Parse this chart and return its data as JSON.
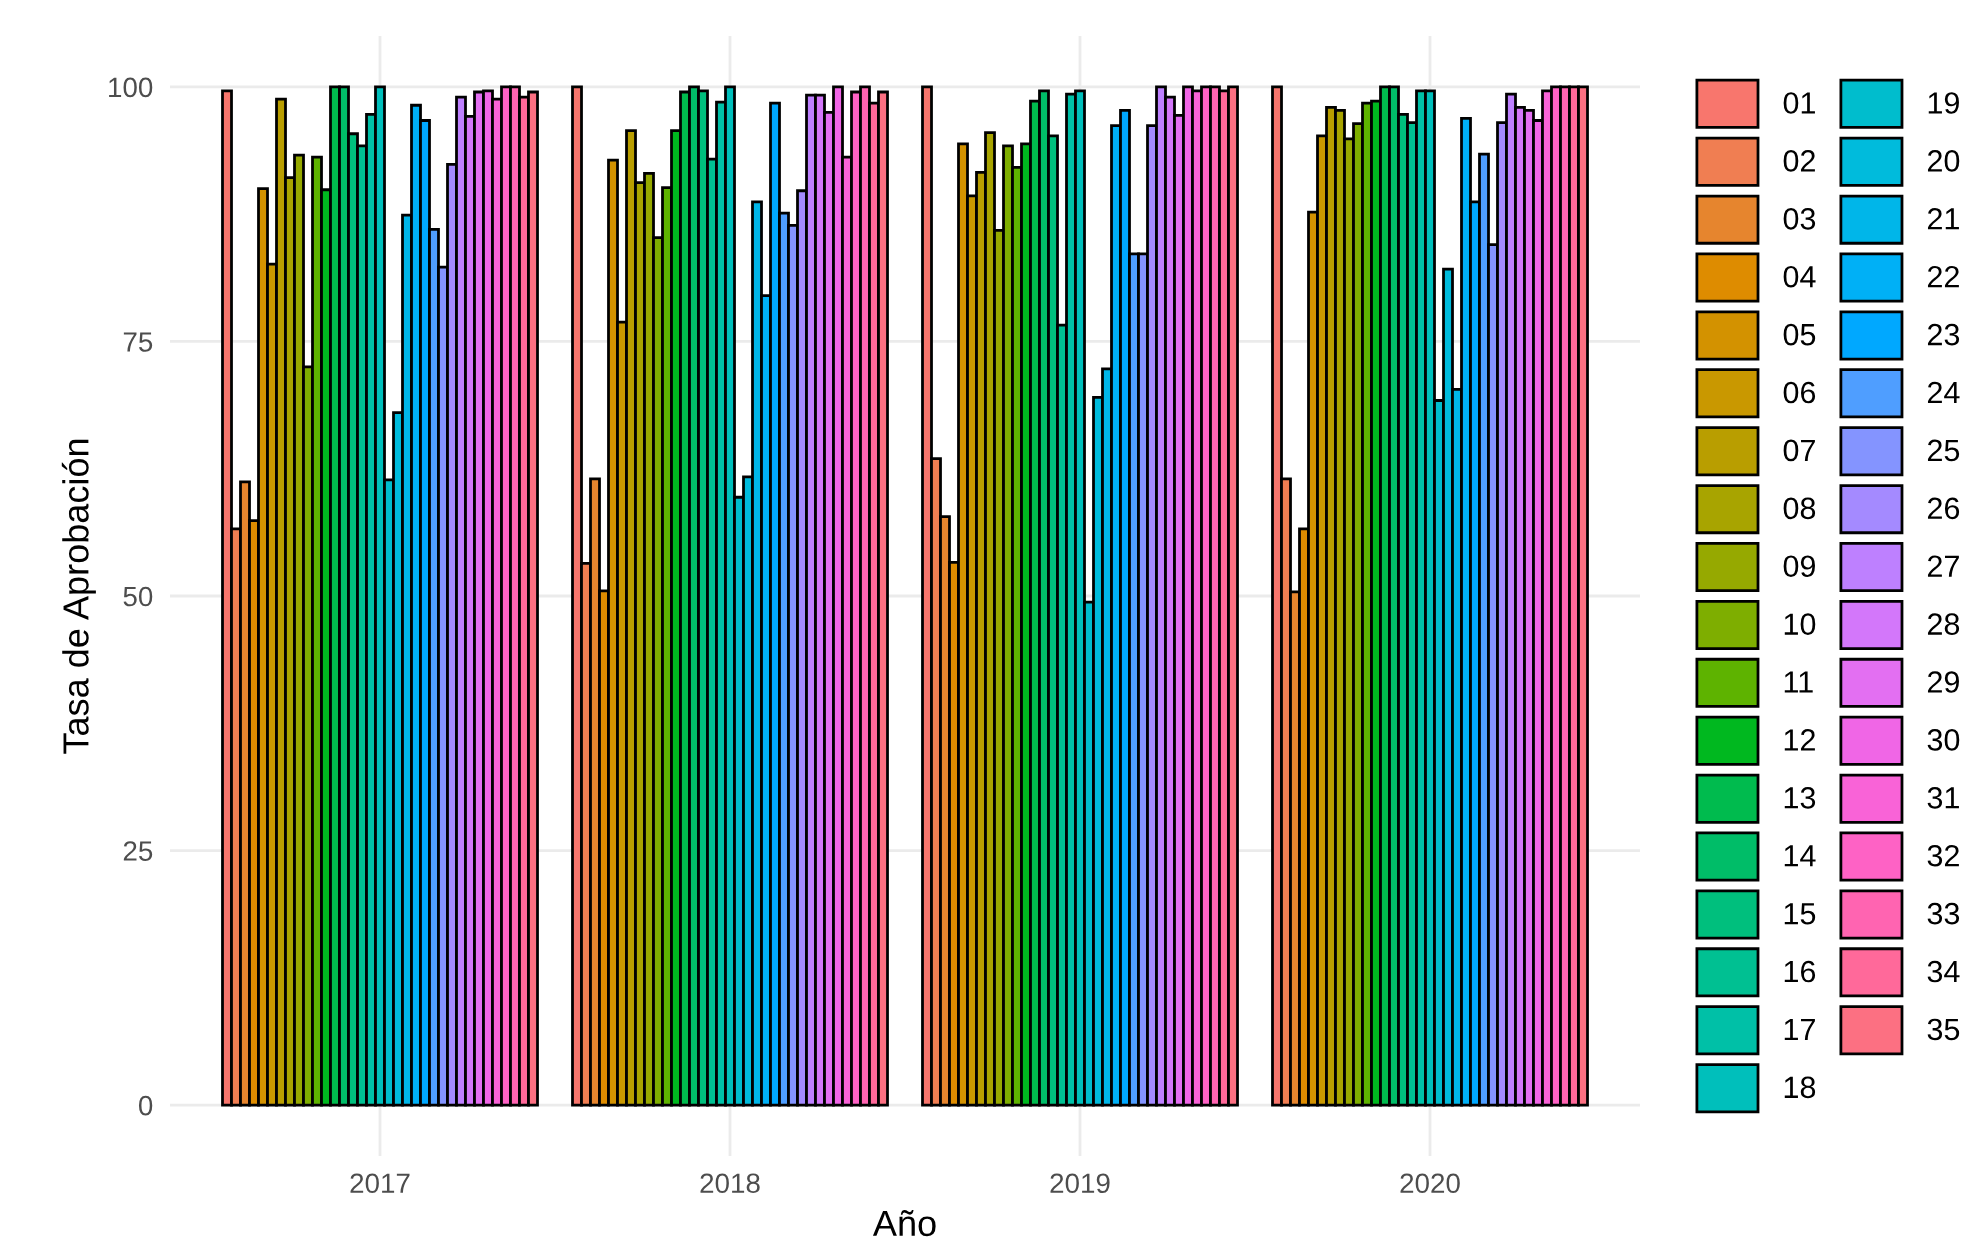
{
  "chart_data": {
    "type": "bar",
    "xlabel": "Año",
    "ylabel": "Tasa de Aprobación",
    "categories": [
      "2017",
      "2018",
      "2019",
      "2020"
    ],
    "ylim": [
      -5,
      105
    ],
    "yticks": [
      0,
      25,
      50,
      75,
      100
    ],
    "grid": true,
    "legend": "right",
    "series": [
      {
        "name": "01",
        "color": "#F8766D",
        "values": [
          99.6,
          100,
          100,
          100
        ]
      },
      {
        "name": "02",
        "color": "#F07E52",
        "values": [
          56.6,
          53.2,
          63.5,
          61.5
        ]
      },
      {
        "name": "03",
        "color": "#E6852E",
        "values": [
          61.2,
          61.5,
          57.8,
          50.4
        ]
      },
      {
        "name": "04",
        "color": "#DE8C00",
        "values": [
          57.4,
          50.5,
          53.3,
          56.6
        ]
      },
      {
        "name": "05",
        "color": "#D39200",
        "values": [
          90.0,
          92.8,
          94.4,
          87.7
        ]
      },
      {
        "name": "06",
        "color": "#C99800",
        "values": [
          82.6,
          76.9,
          89.3,
          95.2
        ]
      },
      {
        "name": "07",
        "color": "#B99E00",
        "values": [
          98.8,
          95.7,
          91.6,
          98.0
        ]
      },
      {
        "name": "08",
        "color": "#A8A400",
        "values": [
          91.1,
          90.6,
          95.5,
          97.7
        ]
      },
      {
        "name": "09",
        "color": "#96A900",
        "values": [
          93.3,
          91.5,
          85.9,
          94.9
        ]
      },
      {
        "name": "10",
        "color": "#7EAE00",
        "values": [
          72.5,
          85.2,
          94.2,
          96.4
        ]
      },
      {
        "name": "11",
        "color": "#5EB300",
        "values": [
          93.1,
          90.1,
          92.1,
          98.4
        ]
      },
      {
        "name": "12",
        "color": "#00B81F",
        "values": [
          89.9,
          95.7,
          94.4,
          98.6
        ]
      },
      {
        "name": "13",
        "color": "#00BB4E",
        "values": [
          100,
          99.5,
          98.6,
          100
        ]
      },
      {
        "name": "14",
        "color": "#00BD68",
        "values": [
          100,
          100,
          99.6,
          100
        ]
      },
      {
        "name": "15",
        "color": "#00BF7D",
        "values": [
          95.4,
          99.6,
          95.2,
          97.3
        ]
      },
      {
        "name": "16",
        "color": "#00C092",
        "values": [
          94.2,
          92.9,
          76.6,
          96.5
        ]
      },
      {
        "name": "17",
        "color": "#00C0A7",
        "values": [
          97.3,
          98.5,
          99.3,
          99.6
        ]
      },
      {
        "name": "18",
        "color": "#00BFBB",
        "values": [
          100,
          100,
          99.6,
          99.6
        ]
      },
      {
        "name": "19",
        "color": "#00BDCD",
        "values": [
          61.4,
          59.7,
          49.4,
          69.2
        ]
      },
      {
        "name": "20",
        "color": "#00BBDC",
        "values": [
          68.0,
          61.7,
          69.5,
          82.1
        ]
      },
      {
        "name": "21",
        "color": "#00B6E9",
        "values": [
          87.4,
          88.7,
          72.3,
          70.3
        ]
      },
      {
        "name": "22",
        "color": "#00B0F6",
        "values": [
          98.2,
          79.5,
          96.2,
          96.9
        ]
      },
      {
        "name": "23",
        "color": "#00A8FF",
        "values": [
          96.7,
          98.4,
          97.7,
          88.7
        ]
      },
      {
        "name": "24",
        "color": "#4F9EFF",
        "values": [
          86.0,
          87.6,
          83.6,
          93.4
        ]
      },
      {
        "name": "25",
        "color": "#8494FF",
        "values": [
          82.3,
          86.4,
          83.6,
          84.5
        ]
      },
      {
        "name": "26",
        "color": "#A48AFF",
        "values": [
          92.4,
          89.8,
          96.2,
          96.5
        ]
      },
      {
        "name": "27",
        "color": "#BE80FF",
        "values": [
          99.0,
          99.2,
          100,
          99.3
        ]
      },
      {
        "name": "28",
        "color": "#D377FA",
        "values": [
          97.1,
          99.2,
          99.0,
          98.0
        ]
      },
      {
        "name": "29",
        "color": "#E36FF2",
        "values": [
          99.5,
          97.5,
          97.2,
          97.7
        ]
      },
      {
        "name": "30",
        "color": "#F066E6",
        "values": [
          99.6,
          100,
          100,
          96.7
        ]
      },
      {
        "name": "31",
        "color": "#F963D7",
        "values": [
          98.8,
          93.1,
          99.6,
          99.6
        ]
      },
      {
        "name": "32",
        "color": "#FE62C5",
        "values": [
          100,
          99.5,
          100,
          100
        ]
      },
      {
        "name": "33",
        "color": "#FF64B1",
        "values": [
          100,
          100,
          100,
          100
        ]
      },
      {
        "name": "34",
        "color": "#FF699A",
        "values": [
          99.0,
          98.4,
          99.6,
          100
        ]
      },
      {
        "name": "35",
        "color": "#FC7082",
        "values": [
          99.5,
          99.5,
          100,
          100
        ]
      }
    ]
  }
}
